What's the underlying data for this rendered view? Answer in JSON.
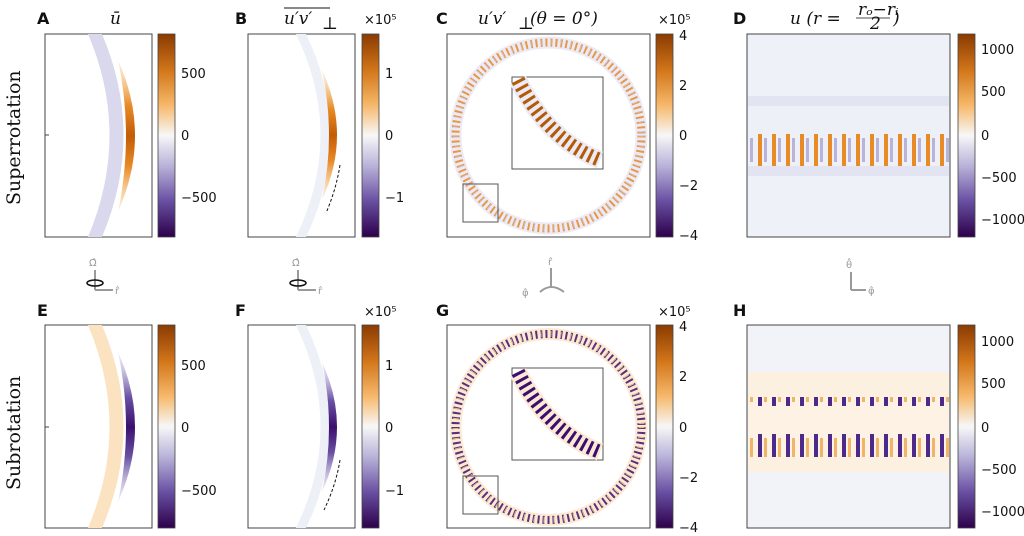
{
  "figure": {
    "row_labels": [
      "Superrotation",
      "Subrotation"
    ],
    "panels": [
      {
        "id": "A",
        "title": "ū",
        "ticks": [
          "500",
          "0",
          "−500"
        ],
        "multiplier": ""
      },
      {
        "id": "B",
        "title": "u′v′⊥ (overbar)",
        "ticks": [
          "1",
          "0",
          "−1"
        ],
        "multiplier": "×10⁵"
      },
      {
        "id": "C",
        "title": "u′v′⊥ (θ = 0°)",
        "ticks": [
          "4",
          "2",
          "0",
          "−2",
          "−4"
        ],
        "multiplier": "×10⁵"
      },
      {
        "id": "D",
        "title": "u (r = (rₒ−rᵢ)/2)",
        "ticks": [
          "1000",
          "500",
          "0",
          "−500",
          "−1000"
        ],
        "multiplier": ""
      },
      {
        "id": "E",
        "title": "",
        "ticks": [
          "500",
          "0",
          "−500"
        ],
        "multiplier": ""
      },
      {
        "id": "F",
        "title": "",
        "ticks": [
          "1",
          "0",
          "−1"
        ],
        "multiplier": "×10⁵"
      },
      {
        "id": "G",
        "title": "",
        "ticks": [
          "4",
          "2",
          "0",
          "−2",
          "−4"
        ],
        "multiplier": "×10⁵"
      },
      {
        "id": "H",
        "title": "",
        "ticks": [
          "1000",
          "500",
          "0",
          "−500",
          "−1000"
        ],
        "multiplier": ""
      }
    ],
    "titles": {
      "A": "ū",
      "B_main": "u′v′",
      "B_sub": "⊥",
      "C_main": "u′v′",
      "C_sub": "⊥",
      "C_rest": " (θ = 0°)",
      "D_main": "u (r = ",
      "D_frac_num": "rₒ−rᵢ",
      "D_frac_den": "2",
      "D_close": ")"
    },
    "axis_glyphs": {
      "omega": "Ω̂",
      "r": "r̂",
      "phi": "φ̂",
      "theta": "θ̂"
    },
    "colors": {
      "orange_dark": "#a34c00",
      "orange": "#e88a26",
      "orange_light": "#fbd9ac",
      "white": "#f7f7f7",
      "purple_light": "#cac6e4",
      "purple": "#7b67ad",
      "purple_dark": "#3b0f6f",
      "axis_grey": "#9a9a9a"
    }
  }
}
